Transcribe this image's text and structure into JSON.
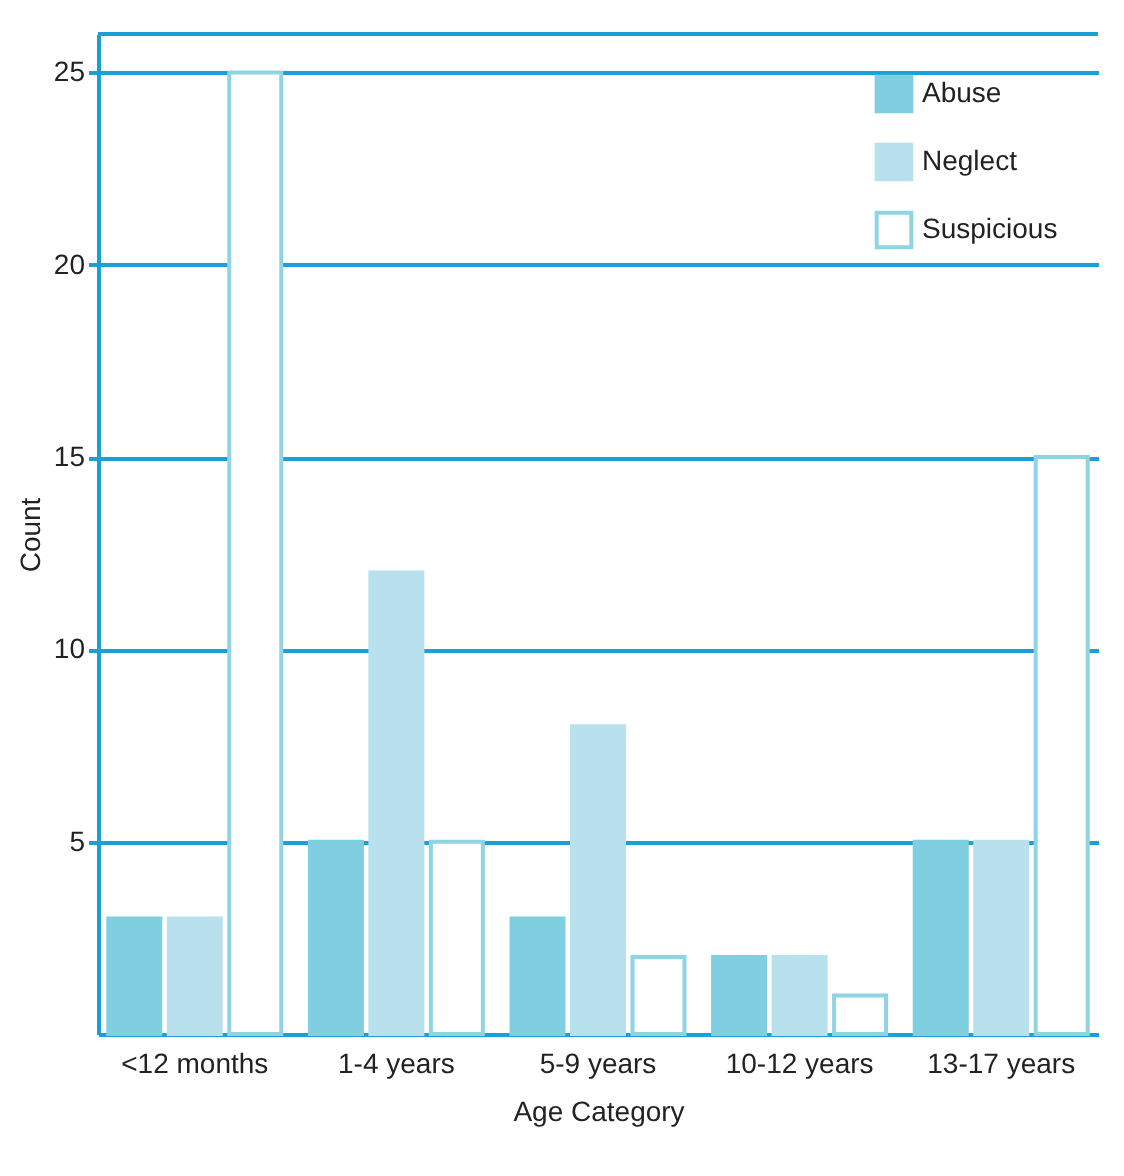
{
  "chart_data": {
    "type": "bar",
    "xlabel": "Age Category",
    "ylabel": "Count",
    "categories": [
      "<12 months",
      "1-4 years",
      "5-9 years",
      "10-12 years",
      "13-17 years"
    ],
    "series": [
      {
        "name": "Abuse",
        "color": "#7fcfe0",
        "values": [
          3,
          5,
          3,
          2,
          5
        ]
      },
      {
        "name": "Neglect",
        "color": "#b8e1ed",
        "values": [
          3,
          12,
          8,
          2,
          5
        ]
      },
      {
        "name": "Suspicious",
        "color": "#8fd4e4",
        "values": [
          25,
          5,
          2,
          1,
          15
        ]
      }
    ],
    "ylim": [
      0,
      26
    ],
    "yticks": [
      5,
      10,
      15,
      20,
      25
    ],
    "grid": "y",
    "legend": "top right"
  }
}
